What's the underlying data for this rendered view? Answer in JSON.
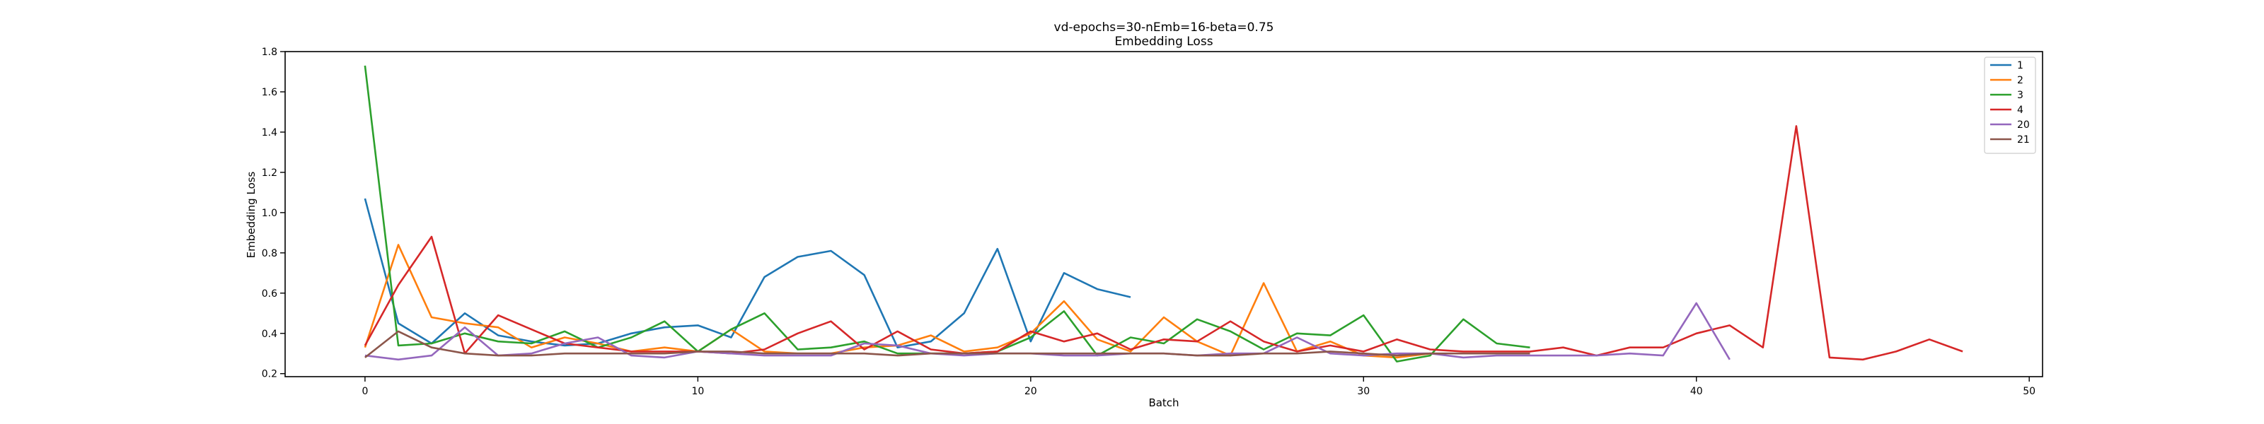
{
  "chart_data": {
    "type": "line",
    "title": "vd-epochs=30-nEmb=16-beta=0.75",
    "subtitle": "Embedding Loss",
    "xlabel": "Batch",
    "ylabel": "Embedding Loss",
    "xlim": [
      -2.4,
      50.4
    ],
    "ylim": [
      0.185,
      1.8
    ],
    "xticks": [
      0,
      10,
      20,
      30,
      40,
      50
    ],
    "yticks": [
      0.2,
      0.4,
      0.6,
      0.8,
      1.0,
      1.2,
      1.4,
      1.6,
      1.8
    ],
    "grid": false,
    "legend_position": "top-right",
    "series": [
      {
        "name": "1",
        "color": "#1f77b4",
        "values": [
          1.07,
          0.45,
          0.35,
          0.5,
          0.39,
          0.36,
          0.34,
          0.35,
          0.4,
          0.43,
          0.44,
          0.38,
          0.68,
          0.78,
          0.81,
          0.69,
          0.33,
          0.36,
          0.5,
          0.82,
          0.36,
          0.7,
          0.62,
          0.58
        ]
      },
      {
        "name": "2",
        "color": "#ff7f0e",
        "values": [
          0.33,
          0.84,
          0.48,
          0.45,
          0.43,
          0.33,
          0.38,
          0.35,
          0.31,
          0.33,
          0.31,
          0.42,
          0.31,
          0.3,
          0.3,
          0.33,
          0.34,
          0.39,
          0.31,
          0.33,
          0.4,
          0.56,
          0.37,
          0.31,
          0.48,
          0.36,
          0.29,
          0.65,
          0.31,
          0.36,
          0.29,
          0.28,
          0.3
        ]
      },
      {
        "name": "3",
        "color": "#2ca02c",
        "values": [
          1.73,
          0.34,
          0.35,
          0.4,
          0.36,
          0.35,
          0.41,
          0.33,
          0.38,
          0.46,
          0.31,
          0.42,
          0.5,
          0.32,
          0.33,
          0.36,
          0.3,
          0.3,
          0.3,
          0.31,
          0.38,
          0.51,
          0.29,
          0.38,
          0.35,
          0.47,
          0.41,
          0.32,
          0.4,
          0.39,
          0.49,
          0.26,
          0.29,
          0.47,
          0.35,
          0.33
        ]
      },
      {
        "name": "4",
        "color": "#d62728",
        "values": [
          0.34,
          0.64,
          0.88,
          0.3,
          0.49,
          0.42,
          0.35,
          0.33,
          0.31,
          0.31,
          0.31,
          0.3,
          0.32,
          0.4,
          0.46,
          0.32,
          0.41,
          0.32,
          0.3,
          0.31,
          0.41,
          0.36,
          0.4,
          0.32,
          0.37,
          0.36,
          0.46,
          0.36,
          0.31,
          0.34,
          0.31,
          0.37,
          0.32,
          0.31,
          0.31,
          0.31,
          0.33,
          0.29,
          0.33,
          0.33,
          0.4,
          0.44,
          0.33,
          1.43,
          0.28,
          0.27,
          0.31,
          0.37,
          0.31
        ]
      },
      {
        "name": "20",
        "color": "#9467bd",
        "values": [
          0.29,
          0.27,
          0.29,
          0.43,
          0.29,
          0.3,
          0.35,
          0.38,
          0.29,
          0.28,
          0.31,
          0.3,
          0.29,
          0.29,
          0.29,
          0.35,
          0.34,
          0.3,
          0.29,
          0.3,
          0.3,
          0.29,
          0.29,
          0.3,
          0.3,
          0.29,
          0.3,
          0.3,
          0.38,
          0.3,
          0.29,
          0.3,
          0.3,
          0.28,
          0.29,
          0.29,
          0.29,
          0.29,
          0.3,
          0.29,
          0.55,
          0.27
        ]
      },
      {
        "name": "21",
        "color": "#8c564b",
        "values": [
          0.28,
          0.41,
          0.33,
          0.3,
          0.29,
          0.29,
          0.3,
          0.3,
          0.3,
          0.3,
          0.31,
          0.31,
          0.3,
          0.3,
          0.3,
          0.3,
          0.29,
          0.3,
          0.3,
          0.3,
          0.3,
          0.3,
          0.3,
          0.3,
          0.3,
          0.29,
          0.29,
          0.3,
          0.3,
          0.31,
          0.3,
          0.29,
          0.3,
          0.3,
          0.3,
          0.3
        ]
      }
    ]
  }
}
